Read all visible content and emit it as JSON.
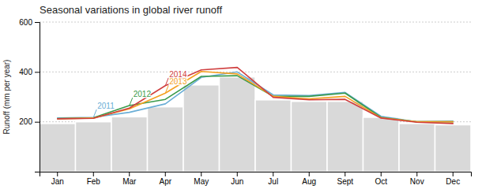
{
  "chart_data": {
    "type": "bar",
    "title": "Seasonal variations in global river runoff",
    "ylabel": "Runoff (mm per year)",
    "categories": [
      "Jan",
      "Feb",
      "Mar",
      "Apr",
      "May",
      "Jun",
      "Jul",
      "Aug",
      "Sept",
      "Oct",
      "Nov",
      "Dec"
    ],
    "series": [
      {
        "type": "bar",
        "color": "#d9d9d9",
        "values": [
          193,
          200,
          220,
          260,
          348,
          380,
          288,
          282,
          282,
          218,
          193,
          188
        ]
      },
      {
        "name": "2011",
        "type": "line",
        "color": "#6aaed6",
        "values": [
          215,
          218,
          238,
          272,
          378,
          400,
          308,
          305,
          318,
          222,
          200,
          203
        ]
      },
      {
        "name": "2012",
        "type": "line",
        "color": "#3a9a4a",
        "values": [
          213,
          216,
          265,
          290,
          382,
          385,
          302,
          302,
          315,
          218,
          200,
          200
        ]
      },
      {
        "name": "2013",
        "type": "line",
        "color": "#f4a020",
        "values": [
          212,
          215,
          252,
          315,
          402,
          392,
          302,
          292,
          302,
          216,
          200,
          200
        ]
      },
      {
        "name": "2014",
        "type": "line",
        "color": "#d04040",
        "values": [
          212,
          214,
          255,
          345,
          408,
          418,
          298,
          288,
          290,
          215,
          198,
          193
        ]
      }
    ],
    "annotations": [
      {
        "text": "2011",
        "x": "Feb",
        "y": 218
      },
      {
        "text": "2012",
        "x": "Mar",
        "y": 265
      },
      {
        "text": "2013",
        "x": "Apr",
        "y": 315
      },
      {
        "text": "2014",
        "x": "Apr",
        "y": 345
      }
    ],
    "ylim": [
      0,
      600
    ],
    "yticks": [
      200,
      400,
      600
    ],
    "grid": true
  }
}
